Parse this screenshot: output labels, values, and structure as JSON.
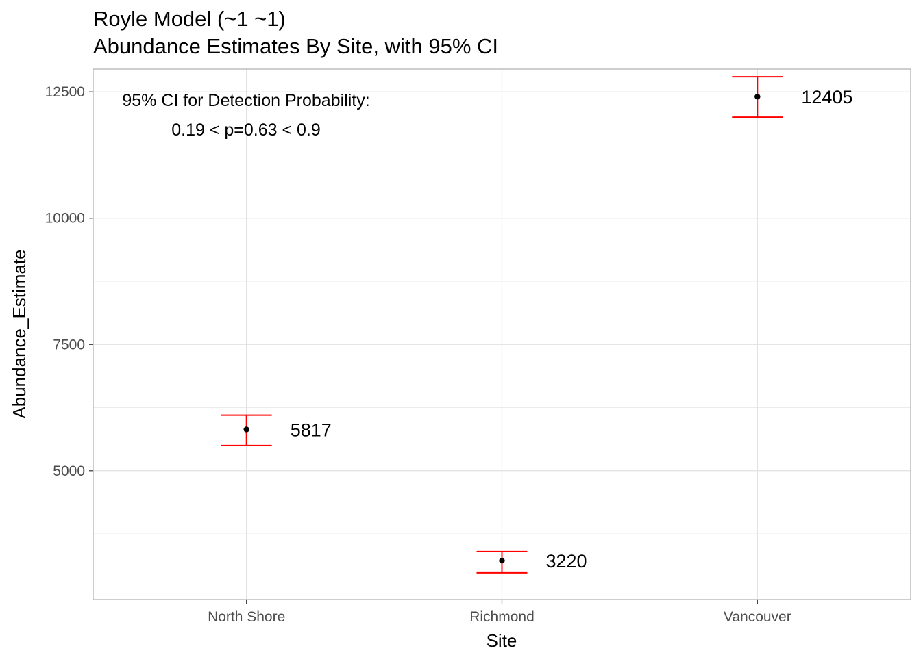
{
  "chart_data": {
    "type": "scatter",
    "title": "Royle Model (~1 ~1)",
    "subtitle": "Abundance Estimates By Site, with 95% CI",
    "xlabel": "Site",
    "ylabel": "Abundance_Estimate",
    "categories": [
      "North Shore",
      "Richmond",
      "Vancouver"
    ],
    "values": [
      5817,
      3220,
      12405
    ],
    "ci_lower": [
      5500,
      2980,
      12000
    ],
    "ci_upper": [
      6100,
      3400,
      12800
    ],
    "data_labels": [
      "5817",
      "3220",
      "12405"
    ],
    "ylim": [
      2450,
      12950
    ],
    "y_ticks": [
      5000,
      7500,
      10000,
      12500
    ],
    "y_tick_labels": [
      "5000",
      "7500",
      "10000",
      "12500"
    ],
    "y_minor_gridlines": [
      3750,
      6250,
      8750,
      11250
    ],
    "grid": true,
    "legend": "none",
    "annotation": [
      "95% CI for Detection Probability:",
      "0.19 < p=0.63 < 0.9"
    ],
    "colors": {
      "errorbar": "#ff0000",
      "point": "#000000",
      "grid": "#ebebeb",
      "panel_border": "#b3b3b3"
    }
  }
}
